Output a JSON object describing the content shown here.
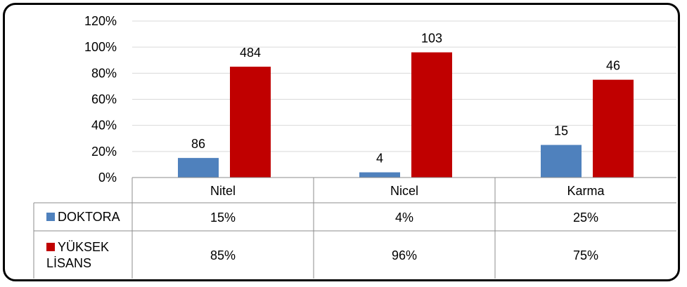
{
  "chart_data": {
    "type": "bar",
    "categories": [
      "Nitel",
      "Nicel",
      "Karma"
    ],
    "yticks": [
      "0%",
      "20%",
      "40%",
      "60%",
      "80%",
      "100%",
      "120%"
    ],
    "ylim": [
      0,
      120
    ],
    "grid": true,
    "legend": "data-table",
    "series": [
      {
        "name": "DOKTORA",
        "color": "#4f81bd",
        "values": [
          15,
          4,
          25
        ],
        "data_labels": [
          "86",
          "4",
          "15"
        ],
        "table_values": [
          "15%",
          "4%",
          "25%"
        ]
      },
      {
        "name": "YÜKSEK\nLİSANS",
        "name_lines": [
          "YÜKSEK",
          "LİSANS"
        ],
        "color": "#c00000",
        "values": [
          85,
          96,
          75
        ],
        "data_labels": [
          "484",
          "103",
          "46"
        ],
        "table_values": [
          "85%",
          "96%",
          "75%"
        ]
      }
    ]
  }
}
